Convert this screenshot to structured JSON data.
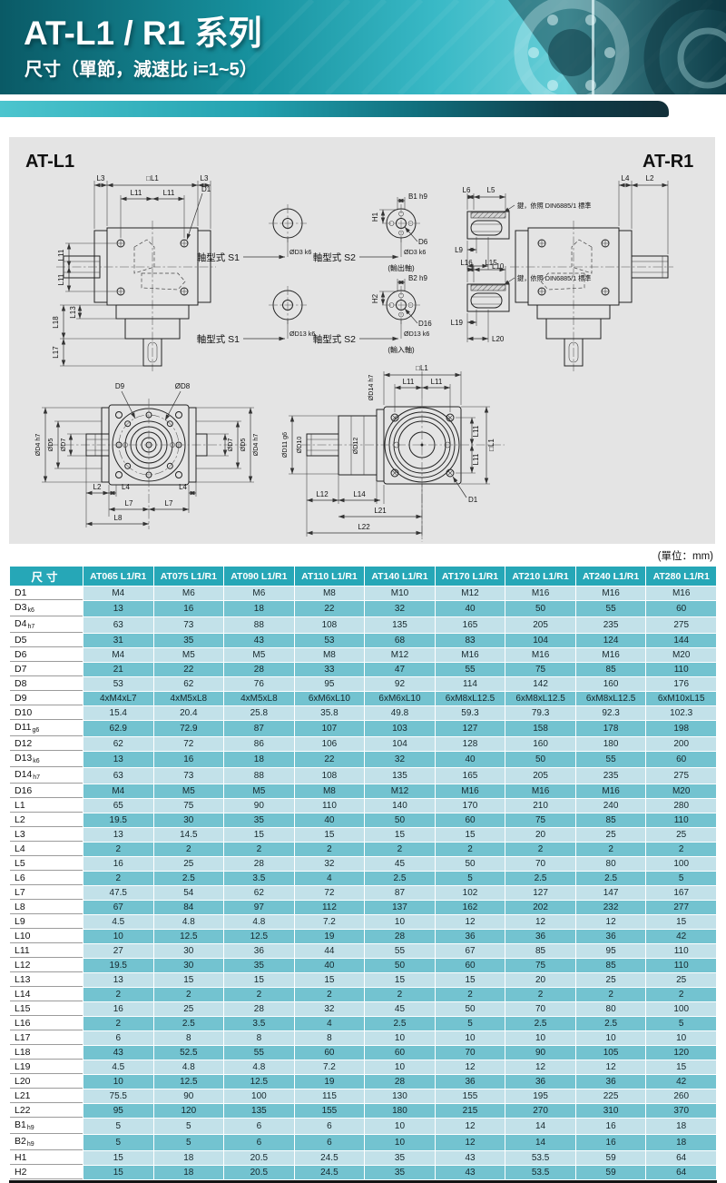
{
  "page": {
    "title": "AT-L1 / R1 系列",
    "subtitle": "尺寸（單節，減速比 i=1~5）"
  },
  "colors": {
    "header_teal": "#26a7b7",
    "row_light": "#c2e1e9",
    "row_dark": "#73c3d0",
    "panel_gray": "#e4e4e4"
  },
  "drawings": {
    "left_title": "AT-L1",
    "right_title": "AT-R1",
    "shaft_type_s1": "軸型式 S1",
    "shaft_type_s2": "軸型式 S2",
    "output_shaft": "(輸出軸)",
    "input_shaft": "(輸入軸)",
    "din_note": "鍵，依照 DIN6885/1 標準",
    "dims": {
      "l1sq": "□L1",
      "l2": "L2",
      "l3": "L3",
      "l4": "L4",
      "l5": "L5",
      "l6": "L6",
      "l7": "L7",
      "l8": "L8",
      "l9": "L9",
      "l10": "L10",
      "l11": "L11",
      "l12": "L12",
      "l13": "L13",
      "l14": "L14",
      "l15": "L15",
      "l16": "L16",
      "l17": "L17",
      "l18": "L18",
      "l19": "L19",
      "l20": "L20",
      "l21": "L21",
      "l22": "L22",
      "d1": "D1",
      "d6": "D6",
      "d9": "D9",
      "d16": "D16",
      "b1": "B1 h9",
      "b2": "B2 h9",
      "h1": "H1",
      "h2": "H2",
      "dd3": "ØD3 k6",
      "dd4": "ØD4 h7",
      "dd5": "ØD5",
      "dd7": "ØD7",
      "dd8": "ØD8",
      "dd10": "ØD10",
      "dd11": "ØD11 g6",
      "dd12": "ØD12",
      "dd13": "ØD13 k6",
      "dd14": "ØD14 h7"
    }
  },
  "table": {
    "unit_note": "(單位：mm)",
    "corner_label": "尺寸",
    "columns": [
      "AT065 L1/R1",
      "AT075 L1/R1",
      "AT090 L1/R1",
      "AT110 L1/R1",
      "AT140 L1/R1",
      "AT170 L1/R1",
      "AT210 L1/R1",
      "AT240 L1/R1",
      "AT280 L1/R1"
    ],
    "rows": [
      {
        "label": "D1",
        "sub": "",
        "values": [
          "M4",
          "M6",
          "M6",
          "M8",
          "M10",
          "M12",
          "M16",
          "M16",
          "M16"
        ]
      },
      {
        "label": "D3",
        "sub": "k6",
        "values": [
          "13",
          "16",
          "18",
          "22",
          "32",
          "40",
          "50",
          "55",
          "60"
        ]
      },
      {
        "label": "D4",
        "sub": "h7",
        "values": [
          "63",
          "73",
          "88",
          "108",
          "135",
          "165",
          "205",
          "235",
          "275"
        ]
      },
      {
        "label": "D5",
        "sub": "",
        "values": [
          "31",
          "35",
          "43",
          "53",
          "68",
          "83",
          "104",
          "124",
          "144"
        ]
      },
      {
        "label": "D6",
        "sub": "",
        "values": [
          "M4",
          "M5",
          "M5",
          "M8",
          "M12",
          "M16",
          "M16",
          "M16",
          "M20"
        ]
      },
      {
        "label": "D7",
        "sub": "",
        "values": [
          "21",
          "22",
          "28",
          "33",
          "47",
          "55",
          "75",
          "85",
          "110"
        ]
      },
      {
        "label": "D8",
        "sub": "",
        "values": [
          "53",
          "62",
          "76",
          "95",
          "92",
          "114",
          "142",
          "160",
          "176"
        ]
      },
      {
        "label": "D9",
        "sub": "",
        "values": [
          "4xM4xL7",
          "4xM5xL8",
          "4xM5xL8",
          "6xM6xL10",
          "6xM6xL10",
          "6xM8xL12.5",
          "6xM8xL12.5",
          "6xM8xL12.5",
          "6xM10xL15"
        ]
      },
      {
        "label": "D10",
        "sub": "",
        "values": [
          "15.4",
          "20.4",
          "25.8",
          "35.8",
          "49.8",
          "59.3",
          "79.3",
          "92.3",
          "102.3"
        ]
      },
      {
        "label": "D11",
        "sub": "g6",
        "values": [
          "62.9",
          "72.9",
          "87",
          "107",
          "103",
          "127",
          "158",
          "178",
          "198"
        ]
      },
      {
        "label": "D12",
        "sub": "",
        "values": [
          "62",
          "72",
          "86",
          "106",
          "104",
          "128",
          "160",
          "180",
          "200"
        ]
      },
      {
        "label": "D13",
        "sub": "k6",
        "values": [
          "13",
          "16",
          "18",
          "22",
          "32",
          "40",
          "50",
          "55",
          "60"
        ]
      },
      {
        "label": "D14",
        "sub": "h7",
        "values": [
          "63",
          "73",
          "88",
          "108",
          "135",
          "165",
          "205",
          "235",
          "275"
        ]
      },
      {
        "label": "D16",
        "sub": "",
        "values": [
          "M4",
          "M5",
          "M5",
          "M8",
          "M12",
          "M16",
          "M16",
          "M16",
          "M20"
        ]
      },
      {
        "label": "L1",
        "sub": "",
        "values": [
          "65",
          "75",
          "90",
          "110",
          "140",
          "170",
          "210",
          "240",
          "280"
        ]
      },
      {
        "label": "L2",
        "sub": "",
        "values": [
          "19.5",
          "30",
          "35",
          "40",
          "50",
          "60",
          "75",
          "85",
          "110"
        ]
      },
      {
        "label": "L3",
        "sub": "",
        "values": [
          "13",
          "14.5",
          "15",
          "15",
          "15",
          "15",
          "20",
          "25",
          "25"
        ]
      },
      {
        "label": "L4",
        "sub": "",
        "values": [
          "2",
          "2",
          "2",
          "2",
          "2",
          "2",
          "2",
          "2",
          "2"
        ]
      },
      {
        "label": "L5",
        "sub": "",
        "values": [
          "16",
          "25",
          "28",
          "32",
          "45",
          "50",
          "70",
          "80",
          "100"
        ]
      },
      {
        "label": "L6",
        "sub": "",
        "values": [
          "2",
          "2.5",
          "3.5",
          "4",
          "2.5",
          "5",
          "2.5",
          "2.5",
          "5"
        ]
      },
      {
        "label": "L7",
        "sub": "",
        "values": [
          "47.5",
          "54",
          "62",
          "72",
          "87",
          "102",
          "127",
          "147",
          "167"
        ]
      },
      {
        "label": "L8",
        "sub": "",
        "values": [
          "67",
          "84",
          "97",
          "112",
          "137",
          "162",
          "202",
          "232",
          "277"
        ]
      },
      {
        "label": "L9",
        "sub": "",
        "values": [
          "4.5",
          "4.8",
          "4.8",
          "7.2",
          "10",
          "12",
          "12",
          "12",
          "15"
        ]
      },
      {
        "label": "L10",
        "sub": "",
        "values": [
          "10",
          "12.5",
          "12.5",
          "19",
          "28",
          "36",
          "36",
          "36",
          "42"
        ]
      },
      {
        "label": "L11",
        "sub": "",
        "values": [
          "27",
          "30",
          "36",
          "44",
          "55",
          "67",
          "85",
          "95",
          "110"
        ]
      },
      {
        "label": "L12",
        "sub": "",
        "values": [
          "19.5",
          "30",
          "35",
          "40",
          "50",
          "60",
          "75",
          "85",
          "110"
        ]
      },
      {
        "label": "L13",
        "sub": "",
        "values": [
          "13",
          "15",
          "15",
          "15",
          "15",
          "15",
          "20",
          "25",
          "25"
        ]
      },
      {
        "label": "L14",
        "sub": "",
        "values": [
          "2",
          "2",
          "2",
          "2",
          "2",
          "2",
          "2",
          "2",
          "2"
        ]
      },
      {
        "label": "L15",
        "sub": "",
        "values": [
          "16",
          "25",
          "28",
          "32",
          "45",
          "50",
          "70",
          "80",
          "100"
        ]
      },
      {
        "label": "L16",
        "sub": "",
        "values": [
          "2",
          "2.5",
          "3.5",
          "4",
          "2.5",
          "5",
          "2.5",
          "2.5",
          "5"
        ]
      },
      {
        "label": "L17",
        "sub": "",
        "values": [
          "6",
          "8",
          "8",
          "8",
          "10",
          "10",
          "10",
          "10",
          "10"
        ]
      },
      {
        "label": "L18",
        "sub": "",
        "values": [
          "43",
          "52.5",
          "55",
          "60",
          "60",
          "70",
          "90",
          "105",
          "120"
        ]
      },
      {
        "label": "L19",
        "sub": "",
        "values": [
          "4.5",
          "4.8",
          "4.8",
          "7.2",
          "10",
          "12",
          "12",
          "12",
          "15"
        ]
      },
      {
        "label": "L20",
        "sub": "",
        "values": [
          "10",
          "12.5",
          "12.5",
          "19",
          "28",
          "36",
          "36",
          "36",
          "42"
        ]
      },
      {
        "label": "L21",
        "sub": "",
        "values": [
          "75.5",
          "90",
          "100",
          "115",
          "130",
          "155",
          "195",
          "225",
          "260"
        ]
      },
      {
        "label": "L22",
        "sub": "",
        "values": [
          "95",
          "120",
          "135",
          "155",
          "180",
          "215",
          "270",
          "310",
          "370"
        ]
      },
      {
        "label": "B1",
        "sub": "h9",
        "values": [
          "5",
          "5",
          "6",
          "6",
          "10",
          "12",
          "14",
          "16",
          "18"
        ]
      },
      {
        "label": "B2",
        "sub": "h9",
        "values": [
          "5",
          "5",
          "6",
          "6",
          "10",
          "12",
          "14",
          "16",
          "18"
        ]
      },
      {
        "label": "H1",
        "sub": "",
        "values": [
          "15",
          "18",
          "20.5",
          "24.5",
          "35",
          "43",
          "53.5",
          "59",
          "64"
        ]
      },
      {
        "label": "H2",
        "sub": "",
        "values": [
          "15",
          "18",
          "20.5",
          "24.5",
          "35",
          "43",
          "53.5",
          "59",
          "64"
        ]
      }
    ]
  }
}
